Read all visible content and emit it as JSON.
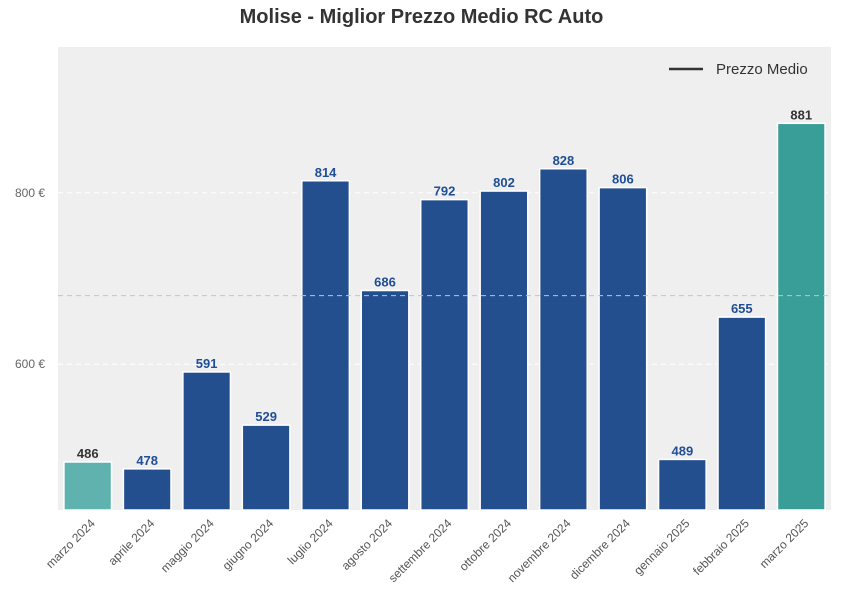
{
  "chart_data": {
    "type": "bar",
    "title": "Molise - Miglior Prezzo Medio RC Auto",
    "categories": [
      "marzo 2024",
      "aprile 2024",
      "maggio 2024",
      "giugno 2024",
      "luglio 2024",
      "agosto 2024",
      "settembre 2024",
      "ottobre 2024",
      "novembre 2024",
      "dicembre 2024",
      "gennaio 2025",
      "febbraio 2025",
      "marzo 2025"
    ],
    "values": [
      486,
      478,
      591,
      529,
      814,
      686,
      792,
      802,
      828,
      806,
      489,
      655,
      881
    ],
    "data_labels": [
      "486",
      "478",
      "591",
      "529",
      "814",
      "686",
      "792",
      "802",
      "828",
      "806",
      "489",
      "655",
      "881"
    ],
    "bar_colors": [
      "#5fb2ae",
      "#234f8f",
      "#234f8f",
      "#234f8f",
      "#234f8f",
      "#234f8f",
      "#234f8f",
      "#234f8f",
      "#234f8f",
      "#234f8f",
      "#234f8f",
      "#234f8f",
      "#3a9e98"
    ],
    "label_colors": [
      "#333333",
      "#1f4e96",
      "#1f4e96",
      "#1f4e96",
      "#1f4e96",
      "#1f4e96",
      "#1f4e96",
      "#1f4e96",
      "#1f4e96",
      "#1f4e96",
      "#1f4e96",
      "#1f4e96",
      "#333333"
    ],
    "yticks": [
      600,
      800
    ],
    "ytick_labels": [
      "600 €",
      "800 €"
    ],
    "ylim": [
      430,
      970
    ],
    "mean_line": 680,
    "legend": {
      "label": "Prezzo Medio",
      "position": "top-right"
    },
    "grid": true,
    "plot_bg": "#efefef"
  }
}
